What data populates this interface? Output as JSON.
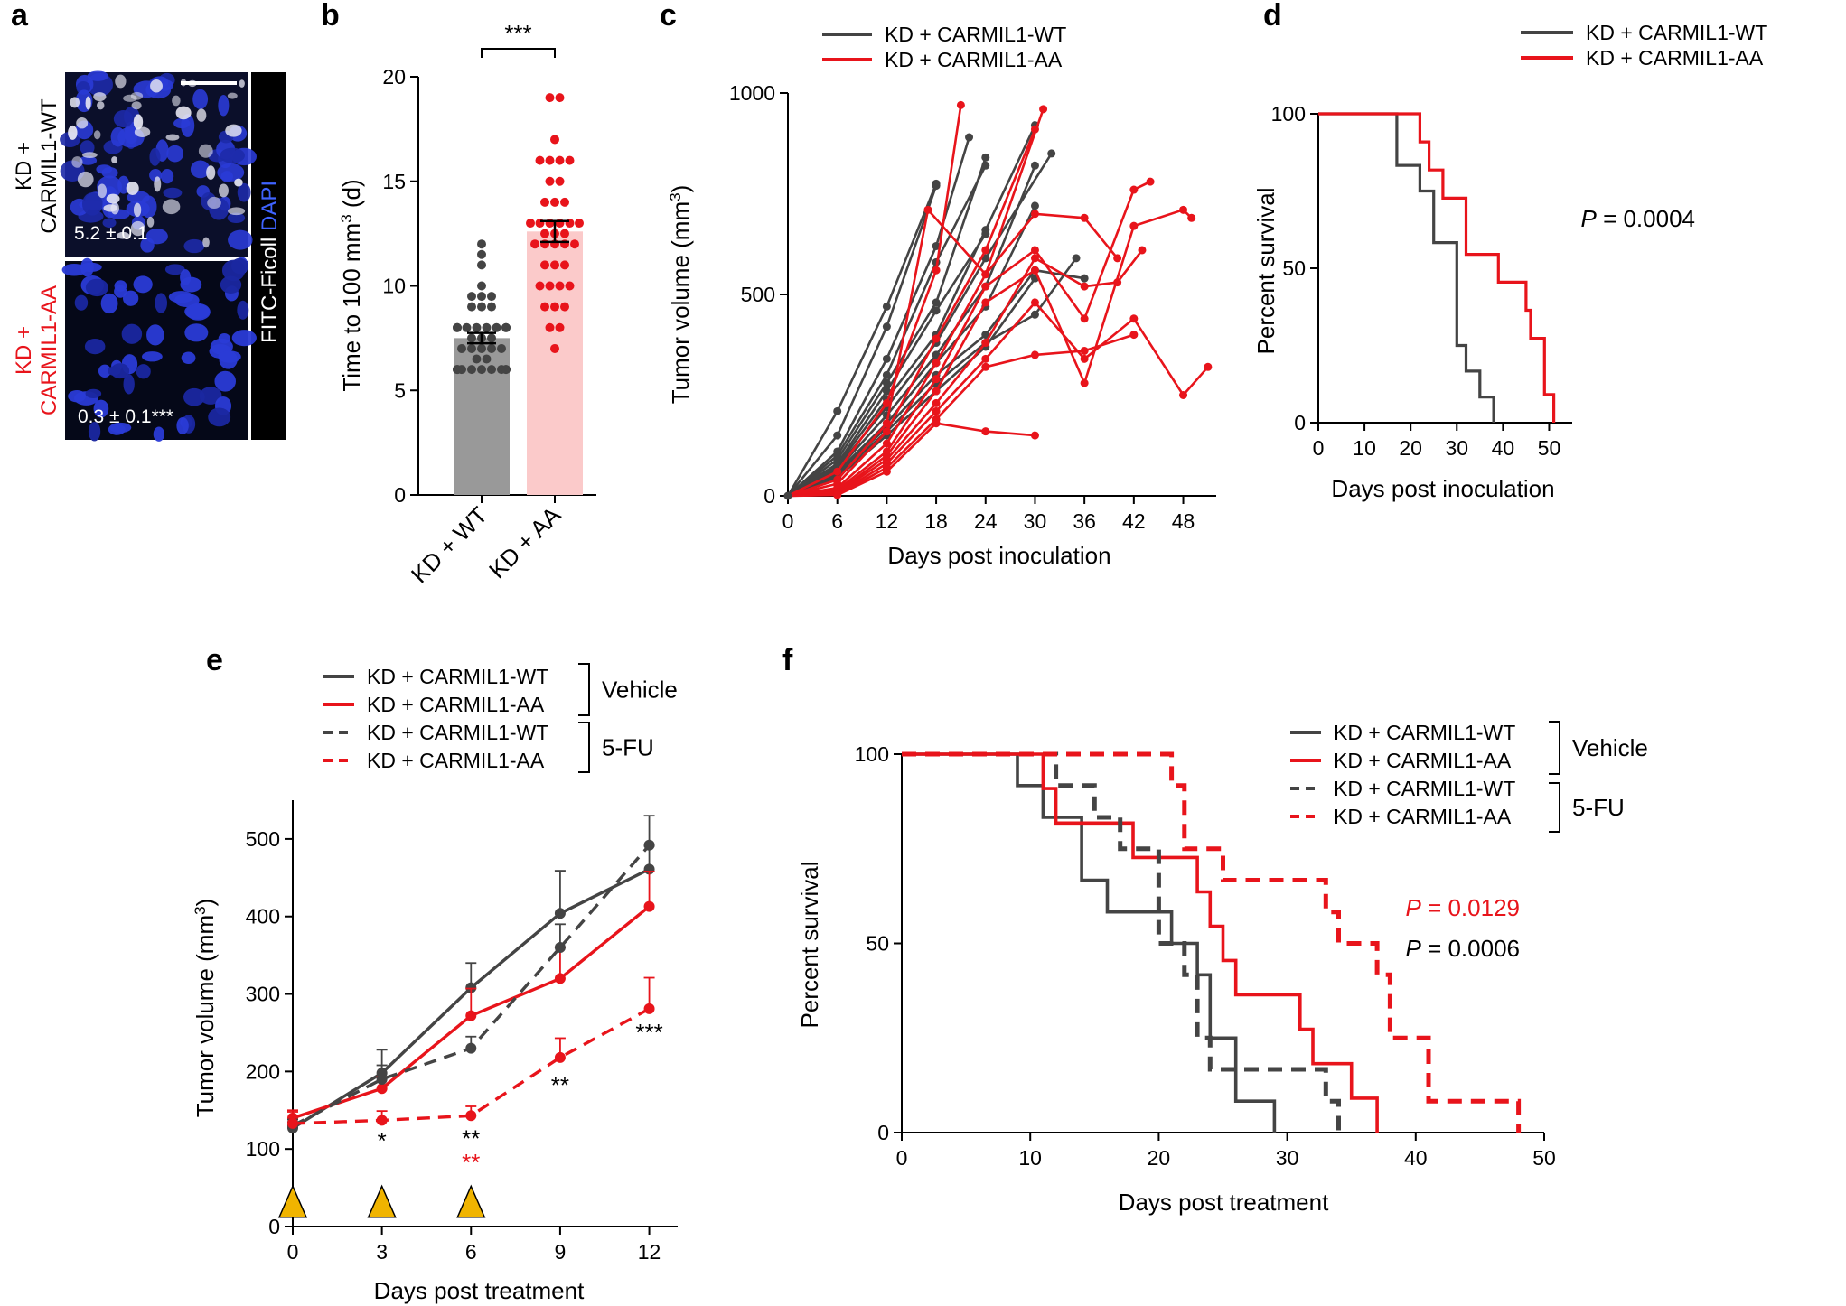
{
  "panels": {
    "a": "a",
    "b": "b",
    "c": "c",
    "d": "d",
    "e": "e",
    "f": "f"
  },
  "colors": {
    "wt": "#444444",
    "aa": "#e8141b",
    "wt_bar": "#999999",
    "aa_bar": "#fbcaca",
    "triangle": "#f0b400",
    "dapi": "#2a3bd6"
  },
  "panel_a": {
    "row_wt_line1": "KD +",
    "row_wt_line2": "CARMIL1-WT",
    "row_aa_line1": "KD +",
    "row_aa_line2": "CARMIL1-AA",
    "value_wt": "5.2 ± 0.1",
    "value_aa": "0.3 ± 0.1***",
    "stain_fitc": "FITC-Ficoll",
    "stain_dapi": "DAPI"
  },
  "chart_data": [
    {
      "id": "b",
      "type": "bar",
      "ylabel": "Time to 100 mm³ (d)",
      "ylim": [
        0,
        20
      ],
      "yticks": [
        0,
        5,
        10,
        15,
        20
      ],
      "categories": [
        "KD + WT",
        "KD + AA"
      ],
      "values": [
        7.5,
        12.6
      ],
      "errors": [
        0.25,
        0.5
      ],
      "significance": "***",
      "points": [
        [
          12,
          11.5,
          11,
          10,
          9.5,
          9.5,
          9.5,
          9,
          9,
          9,
          8,
          8,
          8,
          8,
          8,
          8,
          8,
          8,
          7.5,
          7.5,
          7.5,
          7,
          7,
          7,
          7,
          7,
          6.5,
          6.5,
          6,
          6,
          6,
          6,
          6,
          6,
          6,
          6,
          6
        ],
        [
          19,
          19,
          17,
          16,
          16,
          16,
          16,
          15,
          15,
          14,
          14,
          14,
          13,
          13,
          13,
          13,
          13,
          13,
          12.5,
          12.5,
          12.5,
          12,
          12,
          12,
          12,
          12,
          11,
          11,
          11,
          10,
          10,
          10,
          10,
          9,
          9,
          9,
          8,
          8,
          7
        ]
      ]
    },
    {
      "id": "c",
      "type": "line",
      "xlabel": "Days post inoculation",
      "ylabel": "Tumor volume (mm³)",
      "xlim": [
        0,
        52
      ],
      "ylim": [
        0,
        1000
      ],
      "xticks": [
        0,
        6,
        12,
        18,
        24,
        30,
        36,
        42,
        48
      ],
      "yticks": [
        0,
        500,
        1000
      ],
      "legend": [
        "KD + CARMIL1-WT",
        "KD + CARMIL1-AA"
      ],
      "series": [
        {
          "group": "wt",
          "x": [
            0,
            6,
            12,
            18
          ],
          "y": [
            0,
            210,
            470,
            775
          ]
        },
        {
          "group": "wt",
          "x": [
            0,
            6,
            12,
            18
          ],
          "y": [
            0,
            150,
            420,
            770
          ]
        },
        {
          "group": "wt",
          "x": [
            0,
            6,
            12,
            18,
            22
          ],
          "y": [
            0,
            110,
            340,
            620,
            890
          ]
        },
        {
          "group": "wt",
          "x": [
            0,
            6,
            12,
            18,
            24
          ],
          "y": [
            0,
            100,
            300,
            580,
            820
          ]
        },
        {
          "group": "wt",
          "x": [
            0,
            6,
            12,
            18,
            24
          ],
          "y": [
            0,
            90,
            280,
            480,
            840
          ]
        },
        {
          "group": "wt",
          "x": [
            0,
            6,
            12,
            18,
            24
          ],
          "y": [
            0,
            80,
            260,
            460,
            650
          ]
        },
        {
          "group": "wt",
          "x": [
            0,
            6,
            12,
            18,
            24,
            30
          ],
          "y": [
            0,
            75,
            240,
            400,
            660,
            920
          ]
        },
        {
          "group": "wt",
          "x": [
            0,
            6,
            12,
            18,
            24,
            32
          ],
          "y": [
            0,
            70,
            220,
            380,
            590,
            850
          ]
        },
        {
          "group": "wt",
          "x": [
            0,
            6,
            12,
            18,
            24,
            30
          ],
          "y": [
            0,
            65,
            200,
            350,
            520,
            820
          ]
        },
        {
          "group": "wt",
          "x": [
            0,
            6,
            12,
            18,
            24,
            30
          ],
          "y": [
            0,
            60,
            180,
            330,
            470,
            720
          ]
        },
        {
          "group": "wt",
          "x": [
            0,
            6,
            12,
            18,
            24,
            30,
            36
          ],
          "y": [
            0,
            55,
            170,
            300,
            400,
            560,
            540
          ]
        },
        {
          "group": "wt",
          "x": [
            0,
            6,
            12,
            18,
            24,
            30,
            35
          ],
          "y": [
            0,
            50,
            160,
            280,
            380,
            450,
            590
          ]
        },
        {
          "group": "wt",
          "x": [
            0,
            6,
            12,
            18,
            24,
            30
          ],
          "y": [
            0,
            45,
            150,
            260,
            370,
            540
          ]
        },
        {
          "group": "aa",
          "x": [
            0,
            6,
            12,
            18,
            21
          ],
          "y": [
            0,
            60,
            230,
            560,
            970
          ]
        },
        {
          "group": "aa",
          "x": [
            0,
            6,
            12,
            17,
            24,
            31
          ],
          "y": [
            0,
            40,
            180,
            710,
            550,
            960
          ]
        },
        {
          "group": "aa",
          "x": [
            0,
            6,
            12,
            18,
            24,
            30
          ],
          "y": [
            0,
            30,
            160,
            390,
            610,
            910
          ]
        },
        {
          "group": "aa",
          "x": [
            0,
            6,
            12,
            18,
            24,
            30,
            36,
            40
          ],
          "y": [
            0,
            20,
            130,
            330,
            550,
            700,
            690,
            590
          ]
        },
        {
          "group": "aa",
          "x": [
            0,
            6,
            12,
            18,
            24,
            30,
            36,
            42,
            44
          ],
          "y": [
            0,
            15,
            110,
            290,
            520,
            610,
            440,
            760,
            780
          ]
        },
        {
          "group": "aa",
          "x": [
            0,
            6,
            12,
            18,
            24,
            30,
            36,
            42,
            48,
            49
          ],
          "y": [
            0,
            10,
            100,
            260,
            480,
            560,
            280,
            670,
            710,
            690
          ]
        },
        {
          "group": "aa",
          "x": [
            0,
            6,
            12,
            18,
            24,
            30,
            36,
            40,
            43
          ],
          "y": [
            0,
            8,
            90,
            230,
            380,
            590,
            520,
            530,
            610
          ]
        },
        {
          "group": "aa",
          "x": [
            0,
            6,
            12,
            18,
            24,
            30,
            36,
            42,
            48,
            51
          ],
          "y": [
            0,
            5,
            80,
            210,
            340,
            480,
            340,
            440,
            250,
            320
          ]
        },
        {
          "group": "aa",
          "x": [
            0,
            6,
            12,
            18,
            24,
            30,
            36,
            42
          ],
          "y": [
            0,
            3,
            70,
            190,
            320,
            350,
            360,
            400
          ]
        },
        {
          "group": "aa",
          "x": [
            0,
            6,
            12,
            18,
            24,
            30
          ],
          "y": [
            0,
            2,
            60,
            180,
            160,
            150
          ]
        }
      ]
    },
    {
      "id": "d",
      "type": "line",
      "xlabel": "Days post inoculation",
      "ylabel": "Percent survival",
      "xlim": [
        0,
        55
      ],
      "ylim": [
        0,
        100
      ],
      "xticks": [
        0,
        10,
        20,
        30,
        40,
        50
      ],
      "yticks": [
        0,
        50,
        100
      ],
      "legend": [
        "KD + CARMIL1-WT",
        "KD + CARMIL1-AA"
      ],
      "pvalue_label": "P",
      "pvalue_value": " = 0.0004",
      "series": [
        {
          "group": "wt",
          "x": [
            0,
            17,
            17,
            22,
            22,
            25,
            25,
            30,
            30,
            32,
            32,
            35,
            35,
            38,
            38
          ],
          "y": [
            100,
            100,
            83.3,
            83.3,
            75,
            75,
            58.3,
            58.3,
            25,
            25,
            16.7,
            16.7,
            8.3,
            8.3,
            0
          ]
        },
        {
          "group": "aa",
          "x": [
            0,
            22,
            22,
            24,
            24,
            27,
            27,
            32,
            32,
            39,
            39,
            45,
            45,
            46,
            46,
            49,
            49,
            51,
            51
          ],
          "y": [
            100,
            100,
            90.9,
            90.9,
            81.8,
            81.8,
            72.7,
            72.7,
            54.5,
            54.5,
            45.5,
            45.5,
            36.4,
            36.4,
            27.3,
            27.3,
            9.1,
            9.1,
            0
          ]
        }
      ]
    },
    {
      "id": "e",
      "type": "line",
      "xlabel": "Days post treatment",
      "ylabel": "Tumor volume (mm³)",
      "xlim": [
        0,
        12.5
      ],
      "ylim": [
        0,
        550
      ],
      "xticks": [
        0,
        3,
        6,
        9,
        12
      ],
      "yticks": [
        0,
        100,
        200,
        300,
        400,
        500
      ],
      "legend": [
        "KD + CARMIL1-WT",
        "KD + CARMIL1-AA",
        "KD + CARMIL1-WT",
        "KD + CARMIL1-AA"
      ],
      "group_vehicle": "Vehicle",
      "group_5fu": "5-FU",
      "treatment_days": [
        0,
        3,
        6
      ],
      "series": [
        {
          "group": "wt",
          "style": "solid",
          "x": [
            0,
            3,
            6,
            9,
            12
          ],
          "y": [
            127,
            198,
            308,
            404,
            461
          ],
          "err": [
            8,
            30,
            32,
            55,
            30
          ]
        },
        {
          "group": "aa",
          "style": "solid",
          "x": [
            0,
            3,
            6,
            9,
            12
          ],
          "y": [
            140,
            178,
            272,
            320,
            413
          ],
          "err": [
            10,
            15,
            35,
            40,
            45
          ]
        },
        {
          "group": "wt",
          "style": "dashed",
          "x": [
            0,
            3,
            6,
            9,
            12
          ],
          "y": [
            130,
            190,
            230,
            360,
            492
          ],
          "err": [
            8,
            18,
            15,
            30,
            38
          ]
        },
        {
          "group": "aa",
          "style": "dashed",
          "x": [
            0,
            3,
            6,
            9,
            12
          ],
          "y": [
            133,
            137,
            143,
            218,
            281
          ],
          "err": [
            15,
            12,
            12,
            25,
            40
          ]
        }
      ],
      "annotations_black": [
        {
          "x": 3,
          "text": "*"
        },
        {
          "x": 6,
          "text": "**"
        },
        {
          "x": 9,
          "text": "**"
        },
        {
          "x": 12,
          "text": "***"
        }
      ],
      "annotations_red": [
        {
          "x": 6,
          "text": "**"
        }
      ]
    },
    {
      "id": "f",
      "type": "line",
      "xlabel": "Days post treatment",
      "ylabel": "Percent survival",
      "xlim": [
        0,
        50
      ],
      "ylim": [
        0,
        100
      ],
      "xticks": [
        0,
        10,
        20,
        30,
        40,
        50
      ],
      "yticks": [
        0,
        50,
        100
      ],
      "legend": [
        "KD + CARMIL1-WT",
        "KD + CARMIL1-AA",
        "KD + CARMIL1-WT",
        "KD + CARMIL1-AA"
      ],
      "group_vehicle": "Vehicle",
      "group_5fu": "5-FU",
      "pvalue_red_label": "P",
      "pvalue_red_value": " = 0.0129",
      "pvalue_black_label": "P",
      "pvalue_black_value": " = 0.0006",
      "series": [
        {
          "group": "wt",
          "style": "solid",
          "x": [
            0,
            9,
            9,
            11,
            11,
            14,
            14,
            16,
            16,
            21,
            21,
            23,
            23,
            24,
            24,
            26,
            26,
            29,
            29
          ],
          "y": [
            100,
            100,
            91.7,
            91.7,
            83.3,
            83.3,
            66.7,
            66.7,
            58.3,
            58.3,
            50,
            50,
            41.7,
            41.7,
            25,
            25,
            8.3,
            8.3,
            0
          ]
        },
        {
          "group": "aa",
          "style": "solid",
          "x": [
            0,
            11,
            11,
            12,
            12,
            18,
            18,
            23,
            23,
            24,
            24,
            25,
            25,
            26,
            26,
            31,
            31,
            32,
            32,
            35,
            35,
            37,
            37
          ],
          "y": [
            100,
            100,
            90.9,
            90.9,
            81.8,
            81.8,
            72.7,
            72.7,
            63.6,
            63.6,
            54.5,
            54.5,
            45.5,
            45.5,
            36.4,
            36.4,
            27.3,
            27.3,
            18.2,
            18.2,
            9.1,
            9.1,
            0
          ]
        },
        {
          "group": "wt",
          "style": "dashed",
          "x": [
            0,
            12,
            12,
            15,
            15,
            17,
            17,
            20,
            20,
            22,
            22,
            23,
            23,
            24,
            24,
            33,
            33,
            34,
            34
          ],
          "y": [
            100,
            100,
            91.7,
            91.7,
            83.3,
            83.3,
            75,
            75,
            50,
            50,
            41.7,
            41.7,
            25,
            25,
            16.7,
            16.7,
            8.3,
            8.3,
            0
          ]
        },
        {
          "group": "aa",
          "style": "dashed",
          "x": [
            0,
            21,
            21,
            22,
            22,
            25,
            25,
            27,
            27,
            33,
            33,
            34,
            34,
            37,
            37,
            38,
            38,
            41,
            41,
            42,
            42,
            48,
            48
          ],
          "y": [
            100,
            100,
            91.7,
            91.7,
            75,
            75,
            66.7,
            66.7,
            66.7,
            66.7,
            58.3,
            58.3,
            50,
            50,
            41.7,
            41.7,
            25,
            25,
            8.3,
            8.3,
            8.3,
            8.3,
            0
          ]
        }
      ]
    }
  ]
}
